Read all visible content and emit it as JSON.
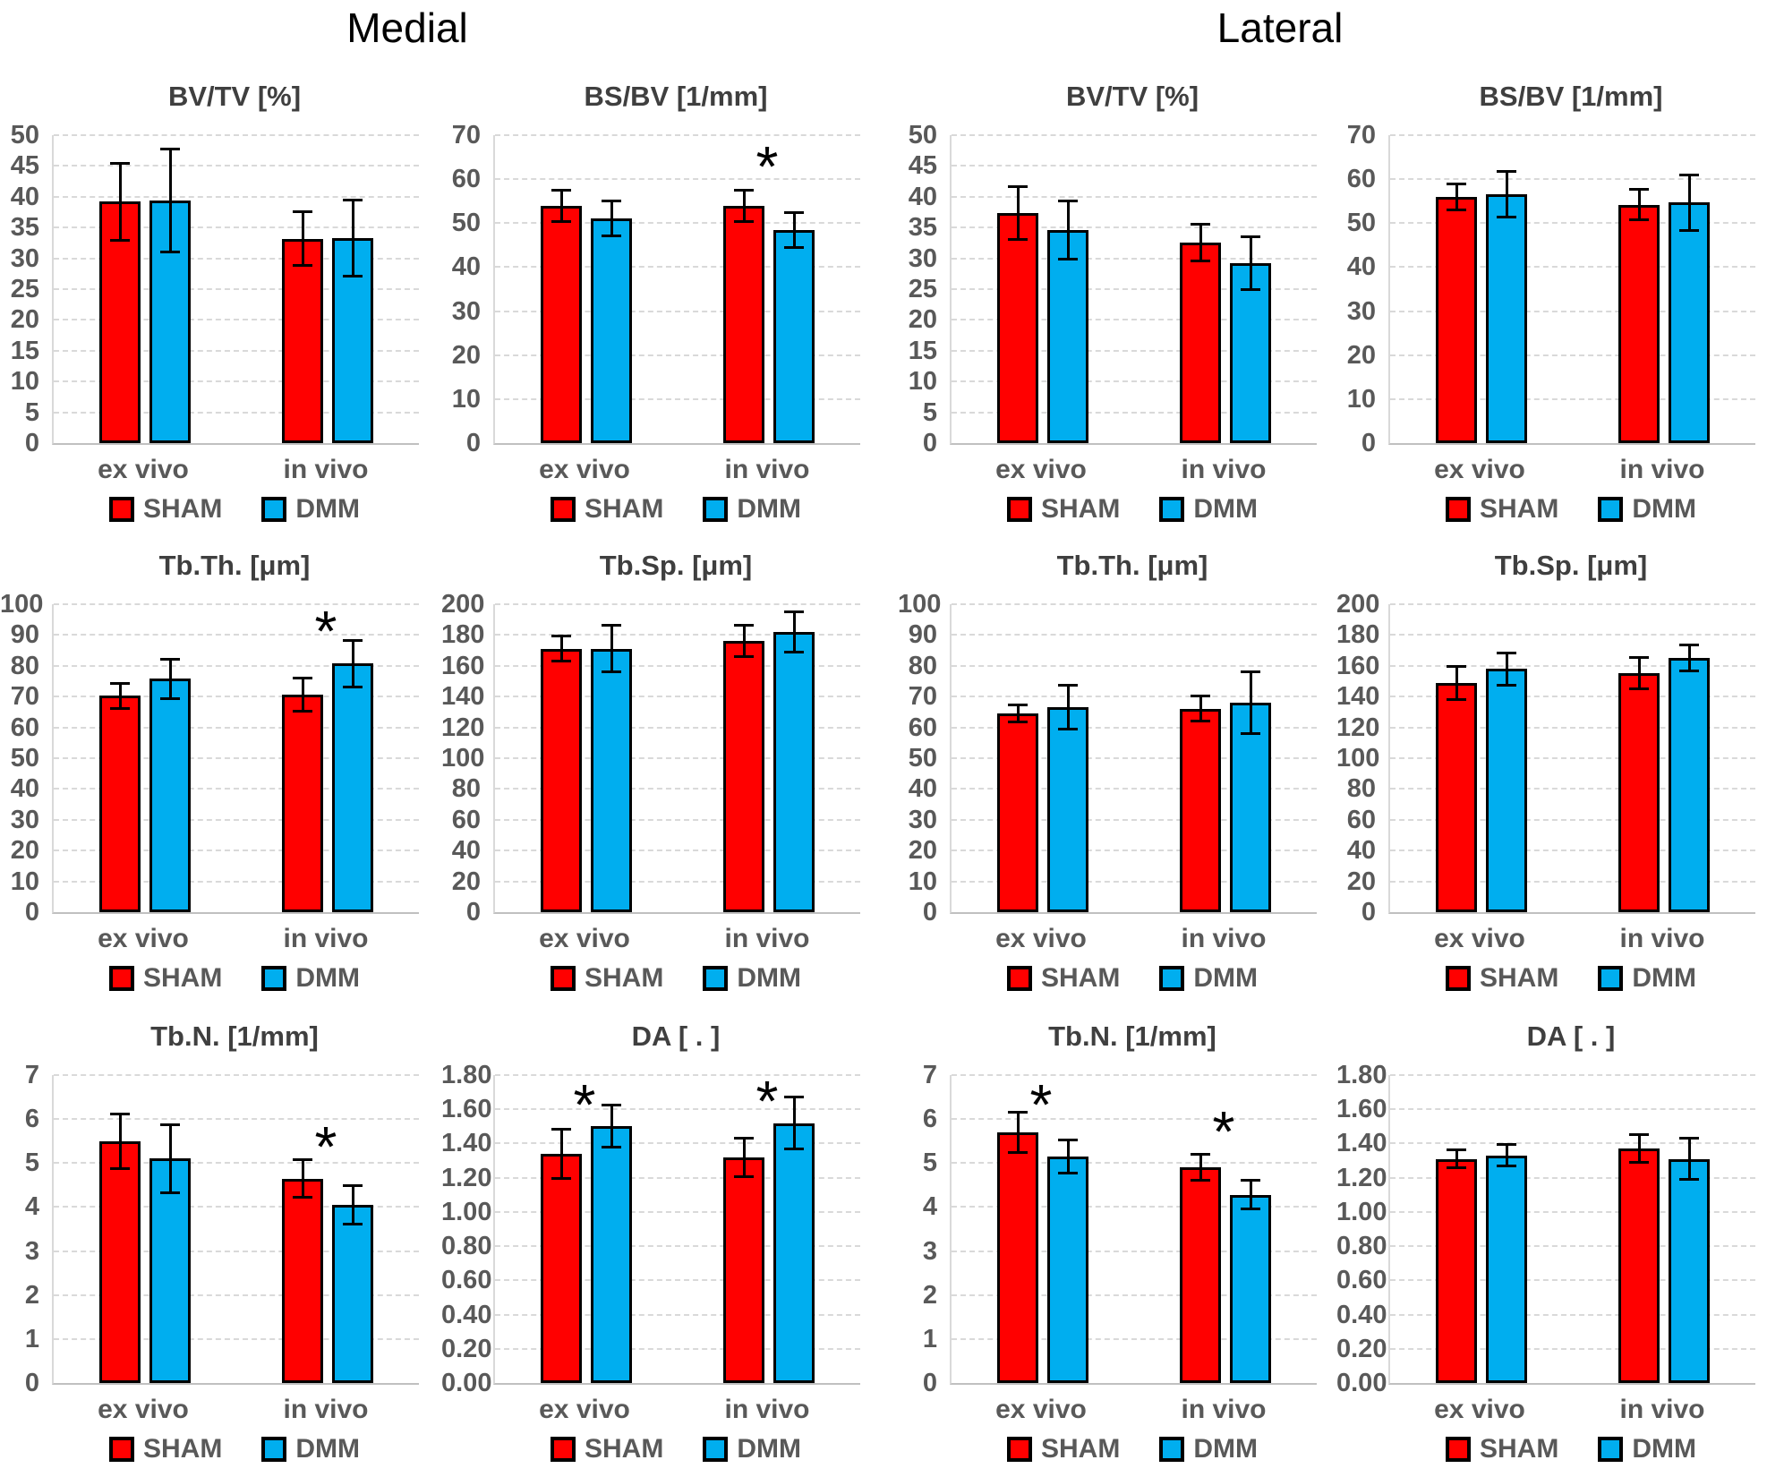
{
  "page": {
    "header_left": "Medial",
    "header_right": "Lateral"
  },
  "legend": {
    "labels": [
      "SHAM",
      "DMM"
    ]
  },
  "colors": {
    "sham": "#FF0000",
    "dmm": "#00AEEF",
    "axis_text": "#595959",
    "title_text": "#3f3f3f",
    "gridline": "#d9d9d9",
    "error_bar": "#000000",
    "significance": "#000000"
  },
  "chart_data": [
    {
      "id": "medial-bvtv",
      "type": "bar",
      "panel": "Medial",
      "title": "BV/TV [%]",
      "categories": [
        "ex vivo",
        "in vivo"
      ],
      "ylim": [
        0,
        50
      ],
      "ystep": 5,
      "ydecimals": 0,
      "grid": true,
      "legend_position": "bottom",
      "series": [
        {
          "name": "SHAM",
          "color": "#FF0000",
          "values": [
            39.2,
            33.2
          ],
          "errors": [
            6.5,
            4.6
          ]
        },
        {
          "name": "DMM",
          "color": "#00AEEF",
          "values": [
            39.4,
            33.3
          ],
          "errors": [
            8.6,
            6.4
          ]
        }
      ],
      "sig_markers": []
    },
    {
      "id": "medial-bsbv",
      "type": "bar",
      "panel": "Medial",
      "title": "BS/BV [1/mm]",
      "categories": [
        "ex vivo",
        "in vivo"
      ],
      "ylim": [
        0,
        70
      ],
      "ystep": 10,
      "ydecimals": 0,
      "grid": true,
      "legend_position": "bottom",
      "series": [
        {
          "name": "SHAM",
          "color": "#FF0000",
          "values": [
            53.9,
            53.9
          ],
          "errors": [
            3.9,
            3.8
          ]
        },
        {
          "name": "DMM",
          "color": "#00AEEF",
          "values": [
            51.1,
            48.4
          ],
          "errors": [
            4.2,
            4.3
          ]
        }
      ],
      "sig_markers": [
        {
          "group": 1,
          "y": 64
        }
      ]
    },
    {
      "id": "lateral-bvtv",
      "type": "bar",
      "panel": "Lateral",
      "title": "BV/TV [%]",
      "categories": [
        "ex vivo",
        "in vivo"
      ],
      "ylim": [
        0,
        50
      ],
      "ystep": 5,
      "ydecimals": 0,
      "grid": true,
      "legend_position": "bottom",
      "series": [
        {
          "name": "SHAM",
          "color": "#FF0000",
          "values": [
            37.3,
            32.5
          ],
          "errors": [
            4.5,
            3.2
          ]
        },
        {
          "name": "DMM",
          "color": "#00AEEF",
          "values": [
            34.6,
            29.2
          ],
          "errors": [
            4.9,
            4.5
          ]
        }
      ],
      "sig_markers": []
    },
    {
      "id": "lateral-bsbv",
      "type": "bar",
      "panel": "Lateral",
      "title": "BS/BV [1/mm]",
      "categories": [
        "ex vivo",
        "in vivo"
      ],
      "ylim": [
        0,
        70
      ],
      "ystep": 10,
      "ydecimals": 0,
      "grid": true,
      "legend_position": "bottom",
      "series": [
        {
          "name": "SHAM",
          "color": "#FF0000",
          "values": [
            56.0,
            54.2
          ],
          "errors": [
            3.3,
            3.8
          ]
        },
        {
          "name": "DMM",
          "color": "#00AEEF",
          "values": [
            56.6,
            54.7
          ],
          "errors": [
            5.5,
            6.6
          ]
        }
      ],
      "sig_markers": []
    },
    {
      "id": "medial-tbth",
      "type": "bar",
      "panel": "Medial",
      "title": "Tb.Th. [μm]",
      "categories": [
        "ex vivo",
        "in vivo"
      ],
      "ylim": [
        0,
        100
      ],
      "ystep": 10,
      "ydecimals": 0,
      "grid": true,
      "legend_position": "bottom",
      "series": [
        {
          "name": "SHAM",
          "color": "#FF0000",
          "values": [
            70.3,
            70.7
          ],
          "errors": [
            4.5,
            5.8
          ]
        },
        {
          "name": "DMM",
          "color": "#00AEEF",
          "values": [
            75.8,
            80.8
          ],
          "errors": [
            6.8,
            8.0
          ]
        }
      ],
      "sig_markers": [
        {
          "group": 1,
          "y": 93
        }
      ]
    },
    {
      "id": "medial-tbsp",
      "type": "bar",
      "panel": "Medial",
      "title": "Tb.Sp. [μm]",
      "categories": [
        "ex vivo",
        "in vivo"
      ],
      "ylim": [
        0,
        200
      ],
      "ystep": 20,
      "ydecimals": 0,
      "grid": true,
      "legend_position": "bottom",
      "series": [
        {
          "name": "SHAM",
          "color": "#FF0000",
          "values": [
            171,
            176
          ],
          "errors": [
            9,
            11
          ]
        },
        {
          "name": "DMM",
          "color": "#00AEEF",
          "values": [
            171,
            182
          ],
          "errors": [
            16,
            14
          ]
        }
      ],
      "sig_markers": []
    },
    {
      "id": "lateral-tbth",
      "type": "bar",
      "panel": "Lateral",
      "title": "Tb.Th. [μm]",
      "categories": [
        "ex vivo",
        "in vivo"
      ],
      "ylim": [
        0,
        100
      ],
      "ystep": 10,
      "ydecimals": 0,
      "grid": true,
      "legend_position": "bottom",
      "series": [
        {
          "name": "SHAM",
          "color": "#FF0000",
          "values": [
            64.5,
            66.0
          ],
          "errors": [
            3.2,
            4.5
          ]
        },
        {
          "name": "DMM",
          "color": "#00AEEF",
          "values": [
            66.5,
            68.0
          ],
          "errors": [
            7.5,
            10.5
          ]
        }
      ],
      "sig_markers": []
    },
    {
      "id": "lateral-tbsp",
      "type": "bar",
      "panel": "Lateral",
      "title": "Tb.Sp. [μm]",
      "categories": [
        "ex vivo",
        "in vivo"
      ],
      "ylim": [
        0,
        200
      ],
      "ystep": 20,
      "ydecimals": 0,
      "grid": true,
      "legend_position": "bottom",
      "series": [
        {
          "name": "SHAM",
          "color": "#FF0000",
          "values": [
            149,
            155
          ],
          "errors": [
            11.5,
            11
          ]
        },
        {
          "name": "DMM",
          "color": "#00AEEF",
          "values": [
            158,
            165
          ],
          "errors": [
            11.3,
            9.2
          ]
        }
      ],
      "sig_markers": []
    },
    {
      "id": "medial-tbn",
      "type": "bar",
      "panel": "Medial",
      "title": "Tb.N. [1/mm]",
      "categories": [
        "ex vivo",
        "in vivo"
      ],
      "ylim": [
        0,
        7
      ],
      "ystep": 1,
      "ydecimals": 0,
      "grid": true,
      "legend_position": "bottom",
      "series": [
        {
          "name": "SHAM",
          "color": "#FF0000",
          "values": [
            5.5,
            4.65
          ],
          "errors": [
            0.65,
            0.45
          ]
        },
        {
          "name": "DMM",
          "color": "#00AEEF",
          "values": [
            5.1,
            4.05
          ],
          "errors": [
            0.8,
            0.46
          ]
        }
      ],
      "sig_markers": [
        {
          "group": 1,
          "y": 5.5
        }
      ]
    },
    {
      "id": "medial-da",
      "type": "bar",
      "panel": "Medial",
      "title": "DA [ . ]",
      "categories": [
        "ex vivo",
        "in vivo"
      ],
      "ylim": [
        0,
        1.8
      ],
      "ystep": 0.2,
      "ydecimals": 2,
      "grid": true,
      "legend_position": "bottom",
      "series": [
        {
          "name": "SHAM",
          "color": "#FF0000",
          "values": [
            1.34,
            1.32
          ],
          "errors": [
            0.15,
            0.12
          ]
        },
        {
          "name": "DMM",
          "color": "#00AEEF",
          "values": [
            1.5,
            1.52
          ],
          "errors": [
            0.13,
            0.16
          ]
        }
      ],
      "sig_markers": [
        {
          "group": 0,
          "y": 1.66
        },
        {
          "group": 1,
          "y": 1.68
        }
      ]
    },
    {
      "id": "lateral-tbn",
      "type": "bar",
      "panel": "Lateral",
      "title": "Tb.N. [1/mm]",
      "categories": [
        "ex vivo",
        "in vivo"
      ],
      "ylim": [
        0,
        7
      ],
      "ystep": 1,
      "ydecimals": 0,
      "grid": true,
      "legend_position": "bottom",
      "series": [
        {
          "name": "SHAM",
          "color": "#FF0000",
          "values": [
            5.7,
            4.9
          ],
          "errors": [
            0.49,
            0.32
          ]
        },
        {
          "name": "DMM",
          "color": "#00AEEF",
          "values": [
            5.15,
            4.28
          ],
          "errors": [
            0.4,
            0.36
          ]
        }
      ],
      "sig_markers": [
        {
          "group": 0,
          "y": 6.45
        },
        {
          "group": 1,
          "y": 5.85
        }
      ]
    },
    {
      "id": "lateral-da",
      "type": "bar",
      "panel": "Lateral",
      "title": "DA [ . ]",
      "categories": [
        "ex vivo",
        "in vivo"
      ],
      "ylim": [
        0,
        1.8
      ],
      "ystep": 0.2,
      "ydecimals": 2,
      "grid": true,
      "legend_position": "bottom",
      "series": [
        {
          "name": "SHAM",
          "color": "#FF0000",
          "values": [
            1.31,
            1.37
          ],
          "errors": [
            0.06,
            0.09
          ]
        },
        {
          "name": "DMM",
          "color": "#00AEEF",
          "values": [
            1.33,
            1.31
          ],
          "errors": [
            0.07,
            0.13
          ]
        }
      ],
      "sig_markers": []
    }
  ]
}
